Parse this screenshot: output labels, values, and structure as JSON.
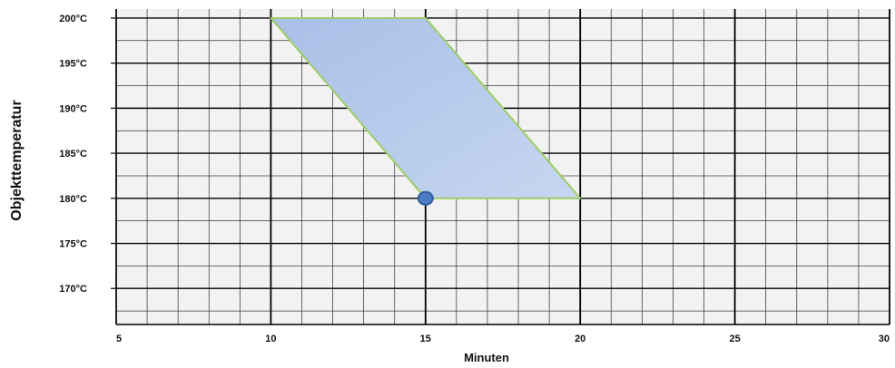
{
  "chart_data": {
    "type": "area",
    "title": "",
    "xlabel": "Minuten",
    "ylabel": "Objekttemperatur",
    "xlim": [
      5,
      30
    ],
    "ylim": [
      166,
      201
    ],
    "x_ticks": [
      5,
      10,
      15,
      20,
      25,
      30
    ],
    "x_tick_labels": [
      "5",
      "10",
      "15",
      "20",
      "25",
      "30"
    ],
    "y_ticks": [
      170,
      175,
      180,
      185,
      190,
      195,
      200
    ],
    "y_tick_labels": [
      "170°C",
      "175°C",
      "180°C",
      "185°C",
      "190°C",
      "195°C",
      "200°C"
    ],
    "grid": true,
    "grid_minor_x_step": 1,
    "grid_minor_y_step": 2.5,
    "region": {
      "shape": "parallelogram",
      "points": [
        {
          "x": 10,
          "y": 200
        },
        {
          "x": 15,
          "y": 200
        },
        {
          "x": 20,
          "y": 180
        },
        {
          "x": 15,
          "y": 180
        }
      ],
      "fill_color": "#b2c7e8",
      "stroke_color": "#9dcd66"
    },
    "marker": {
      "x": 15,
      "y": 180,
      "color": "#4a7dc4",
      "stroke_color": "#2f5b98"
    },
    "colors": {
      "plot_background": "#f2f2f2",
      "minor_grid": "#3a3a3a",
      "major_grid": "#000000",
      "text": "#111111"
    }
  }
}
